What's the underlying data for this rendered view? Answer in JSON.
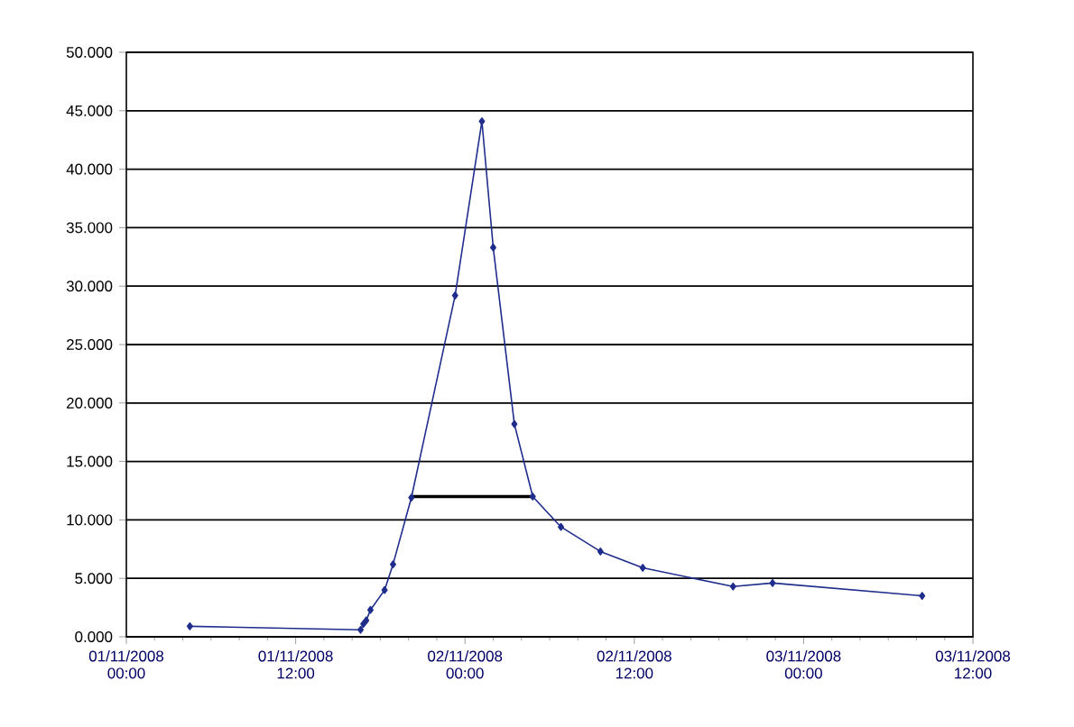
{
  "chart_data": {
    "type": "line",
    "x": [
      "2008-11-01T04:30",
      "2008-11-01T16:36",
      "2008-11-01T16:48",
      "2008-11-01T17:00",
      "2008-11-01T17:18",
      "2008-11-01T18:18",
      "2008-11-01T18:54",
      "2008-11-01T20:12",
      "2008-11-01T23:18",
      "2008-11-02T01:12",
      "2008-11-02T02:00",
      "2008-11-02T03:30",
      "2008-11-02T04:48",
      "2008-11-02T06:48",
      "2008-11-02T09:36",
      "2008-11-02T12:36",
      "2008-11-02T19:00",
      "2008-11-02T21:48",
      "2008-11-03T08:24"
    ],
    "series": [
      {
        "color": "#1f2d8c",
        "marker": "diamond",
        "values": [
          0.9,
          0.6,
          1.1,
          1.4,
          2.3,
          4.0,
          6.2,
          11.9,
          29.2,
          44.1,
          33.3,
          18.2,
          12.0,
          9.4,
          7.3,
          5.9,
          4.3,
          4.6,
          3.5
        ]
      },
      {
        "color": "#000000",
        "marker": "none",
        "x": [
          "2008-11-01T20:12",
          "2008-11-02T04:48"
        ],
        "values": [
          12.0,
          12.0
        ]
      }
    ],
    "xlim": [
      "2008-11-01T00:00",
      "2008-11-03T12:00"
    ],
    "xticks": [
      {
        "value": "2008-11-01T00:00",
        "label": "01/11/2008 00:00"
      },
      {
        "value": "2008-11-01T12:00",
        "label": "01/11/2008 12:00"
      },
      {
        "value": "2008-11-02T00:00",
        "label": "02/11/2008 00:00"
      },
      {
        "value": "2008-11-02T12:00",
        "label": "02/11/2008 12:00"
      },
      {
        "value": "2008-11-03T00:00",
        "label": "03/11/2008 00:00"
      },
      {
        "value": "2008-11-03T12:00",
        "label": "03/11/2008 12:00"
      }
    ],
    "ylim": [
      0,
      50
    ],
    "yticks": [
      {
        "value": 0,
        "label": "0.000"
      },
      {
        "value": 5,
        "label": "5.000"
      },
      {
        "value": 10,
        "label": "10.000"
      },
      {
        "value": 15,
        "label": "15.000"
      },
      {
        "value": 20,
        "label": "20.000"
      },
      {
        "value": 25,
        "label": "25.000"
      },
      {
        "value": 30,
        "label": "30.000"
      },
      {
        "value": 35,
        "label": "35.000"
      },
      {
        "value": 40,
        "label": "40.000"
      },
      {
        "value": 45,
        "label": "45.000"
      },
      {
        "value": 50,
        "label": "50.000"
      }
    ],
    "grid": "y"
  }
}
